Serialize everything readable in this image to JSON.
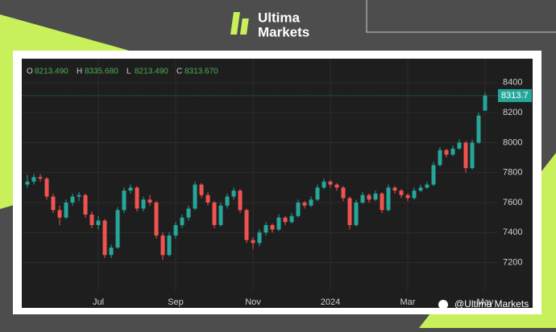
{
  "branding": {
    "logo_line1": "Ultima",
    "logo_line2": "Markets",
    "watermark": "@Ultima Markets"
  },
  "chart_data": {
    "type": "candlestick",
    "ohlc_legend": [
      {
        "label": "O",
        "value": "8213.490"
      },
      {
        "label": "H",
        "value": "8335.680"
      },
      {
        "label": "L",
        "value": "8213.490"
      },
      {
        "label": "C",
        "value": "8313.670"
      }
    ],
    "categories": [
      null,
      null,
      null,
      null,
      null,
      null,
      null,
      null,
      null,
      null,
      null,
      "Jul",
      null,
      null,
      null,
      null,
      null,
      null,
      null,
      null,
      null,
      null,
      null,
      "Sep",
      null,
      null,
      null,
      null,
      null,
      null,
      null,
      null,
      null,
      null,
      null,
      "Nov",
      null,
      null,
      null,
      null,
      null,
      null,
      null,
      null,
      null,
      null,
      null,
      "2024",
      null,
      null,
      null,
      null,
      null,
      null,
      null,
      null,
      null,
      null,
      null,
      "Mar",
      null,
      null,
      null,
      null,
      null,
      null,
      null,
      null,
      null,
      null,
      null,
      "May"
    ],
    "open": [
      7720,
      7740,
      7770,
      7760,
      7640,
      7550,
      7500,
      7600,
      7640,
      7650,
      7520,
      7450,
      7480,
      7250,
      7300,
      7550,
      7680,
      7700,
      7560,
      7620,
      7600,
      7380,
      7250,
      7380,
      7450,
      7500,
      7560,
      7720,
      7650,
      7600,
      7450,
      7580,
      7640,
      7680,
      7550,
      7350,
      7330,
      7400,
      7450,
      7420,
      7500,
      7470,
      7510,
      7600,
      7580,
      7620,
      7700,
      7740,
      7720,
      7700,
      7630,
      7450,
      7600,
      7650,
      7620,
      7660,
      7550,
      7700,
      7680,
      7650,
      7630,
      7680,
      7700,
      7720,
      7850,
      7950,
      7920,
      7960,
      8000,
      7830,
      8000,
      8213.49
    ],
    "high": [
      7785,
      7790,
      7790,
      7770,
      7660,
      7580,
      7620,
      7660,
      7670,
      7660,
      7540,
      7510,
      7490,
      7320,
      7570,
      7700,
      7720,
      7710,
      7640,
      7650,
      7610,
      7400,
      7400,
      7470,
      7520,
      7580,
      7740,
      7730,
      7670,
      7610,
      7600,
      7660,
      7700,
      7690,
      7560,
      7370,
      7420,
      7470,
      7460,
      7520,
      7510,
      7530,
      7620,
      7610,
      7640,
      7720,
      7760,
      7750,
      7730,
      7710,
      7640,
      7620,
      7670,
      7660,
      7680,
      7670,
      7720,
      7710,
      7690,
      7660,
      7700,
      7720,
      7740,
      7870,
      7970,
      7960,
      7980,
      8020,
      8010,
      8020,
      8200,
      8335.68
    ],
    "low": [
      7700,
      7720,
      7740,
      7620,
      7530,
      7450,
      7490,
      7580,
      7610,
      7500,
      7430,
      7420,
      7230,
      7230,
      7290,
      7530,
      7660,
      7540,
      7540,
      7580,
      7360,
      7220,
      7240,
      7360,
      7430,
      7480,
      7550,
      7630,
      7580,
      7430,
      7440,
      7560,
      7620,
      7530,
      7330,
      7290,
      7310,
      7380,
      7400,
      7410,
      7450,
      7460,
      7500,
      7560,
      7570,
      7610,
      7690,
      7700,
      7680,
      7610,
      7420,
      7440,
      7590,
      7600,
      7610,
      7530,
      7540,
      7660,
      7630,
      7610,
      7620,
      7670,
      7690,
      7710,
      7840,
      7900,
      7910,
      7950,
      7800,
      7820,
      7990,
      8213.49
    ],
    "close": [
      7740,
      7770,
      7760,
      7640,
      7550,
      7500,
      7600,
      7640,
      7650,
      7520,
      7450,
      7480,
      7250,
      7300,
      7550,
      7680,
      7700,
      7560,
      7620,
      7600,
      7380,
      7250,
      7380,
      7450,
      7500,
      7560,
      7720,
      7650,
      7600,
      7450,
      7580,
      7640,
      7680,
      7550,
      7350,
      7330,
      7400,
      7450,
      7420,
      7500,
      7470,
      7510,
      7600,
      7580,
      7620,
      7700,
      7740,
      7720,
      7700,
      7630,
      7450,
      7600,
      7650,
      7620,
      7660,
      7550,
      7700,
      7680,
      7650,
      7630,
      7680,
      7700,
      7720,
      7850,
      7950,
      7920,
      7960,
      8000,
      7830,
      8000,
      8180,
      8313.67
    ],
    "up_color": "#26a69a",
    "down_color": "#ef5350",
    "last_price": 8313.7,
    "ylim": [
      7010,
      8560
    ],
    "yticks": [
      7200,
      7400,
      7600,
      7800,
      8000,
      8200,
      8400
    ],
    "grid": true
  }
}
